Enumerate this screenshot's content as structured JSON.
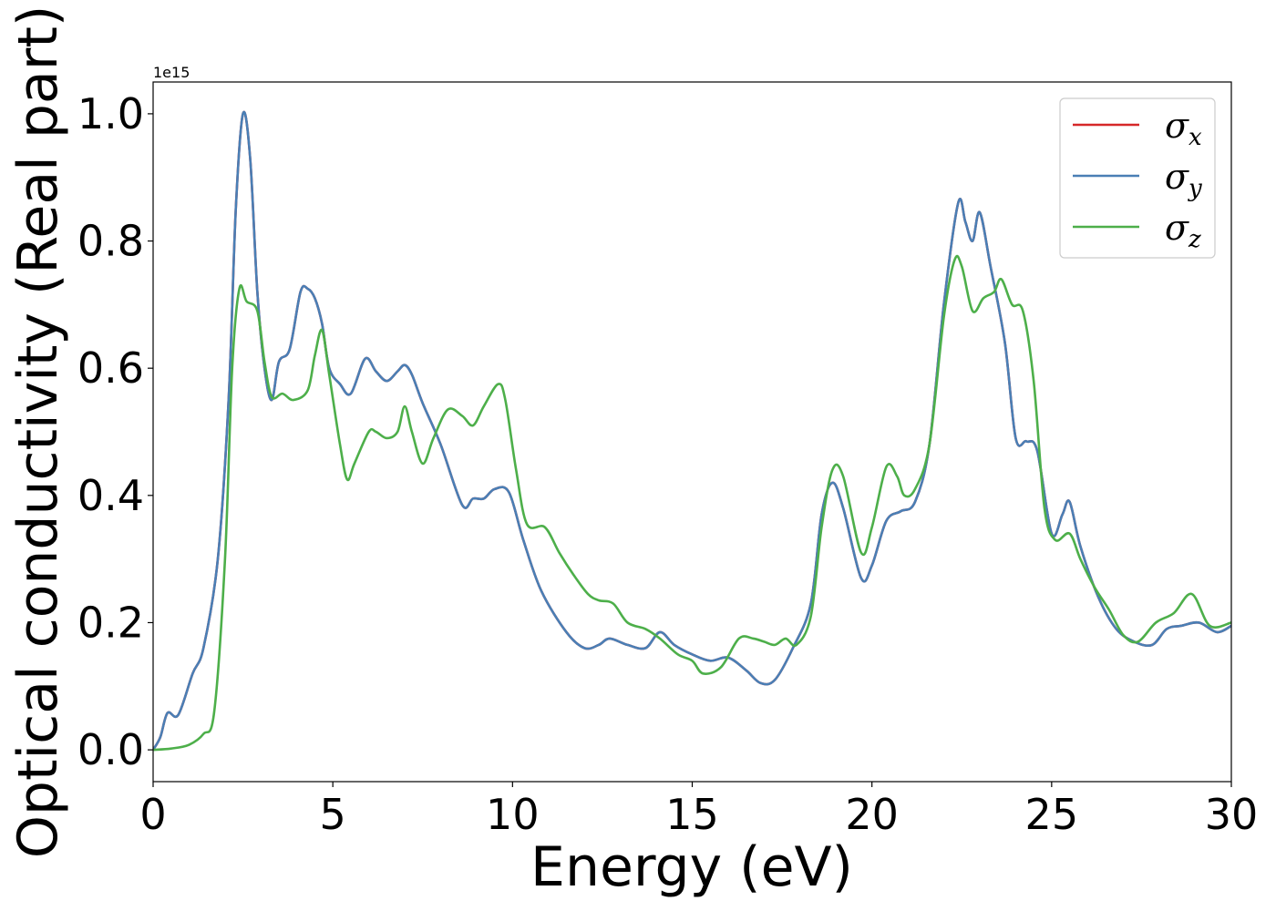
{
  "chart_data": {
    "type": "line",
    "xlabel": "Energy (eV)",
    "ylabel": "Optical conductivity (Real part)",
    "y_offset_label": "1e15",
    "xlim": [
      0,
      30
    ],
    "ylim": [
      -0.05,
      1.05
    ],
    "xticks": [
      0,
      5,
      10,
      15,
      20,
      25,
      30
    ],
    "xtick_labels": [
      "0",
      "5",
      "10",
      "15",
      "20",
      "25",
      "30"
    ],
    "yticks": [
      0.0,
      0.2,
      0.4,
      0.6,
      0.8,
      1.0
    ],
    "ytick_labels": [
      "0.0",
      "0.2",
      "0.4",
      "0.6",
      "0.8",
      "1.0"
    ],
    "grid": false,
    "legend_position": "top-right",
    "series": [
      {
        "name": "σx",
        "symbol": "σ",
        "subscript": "x",
        "color": "#d62728",
        "points": [
          [
            0,
            0
          ],
          [
            0.2,
            0.02
          ],
          [
            0.4,
            0.058
          ],
          [
            0.7,
            0.055
          ],
          [
            1.1,
            0.12
          ],
          [
            1.4,
            0.16
          ],
          [
            1.8,
            0.3
          ],
          [
            2.1,
            0.55
          ],
          [
            2.3,
            0.85
          ],
          [
            2.5,
            1.0
          ],
          [
            2.7,
            0.93
          ],
          [
            2.9,
            0.72
          ],
          [
            3.1,
            0.6
          ],
          [
            3.3,
            0.55
          ],
          [
            3.5,
            0.61
          ],
          [
            3.8,
            0.63
          ],
          [
            4.1,
            0.72
          ],
          [
            4.3,
            0.725
          ],
          [
            4.5,
            0.71
          ],
          [
            4.7,
            0.67
          ],
          [
            4.9,
            0.6
          ],
          [
            5.2,
            0.575
          ],
          [
            5.5,
            0.56
          ],
          [
            5.9,
            0.615
          ],
          [
            6.2,
            0.595
          ],
          [
            6.5,
            0.58
          ],
          [
            6.8,
            0.595
          ],
          [
            7.0,
            0.605
          ],
          [
            7.2,
            0.59
          ],
          [
            7.5,
            0.545
          ],
          [
            8.0,
            0.48
          ],
          [
            8.6,
            0.385
          ],
          [
            8.9,
            0.395
          ],
          [
            9.2,
            0.395
          ],
          [
            9.5,
            0.41
          ],
          [
            9.9,
            0.405
          ],
          [
            10.3,
            0.33
          ],
          [
            10.8,
            0.25
          ],
          [
            11.5,
            0.185
          ],
          [
            12.0,
            0.16
          ],
          [
            12.4,
            0.165
          ],
          [
            12.7,
            0.175
          ],
          [
            13.2,
            0.165
          ],
          [
            13.7,
            0.16
          ],
          [
            14.1,
            0.185
          ],
          [
            14.5,
            0.165
          ],
          [
            15.0,
            0.15
          ],
          [
            15.5,
            0.14
          ],
          [
            16.0,
            0.145
          ],
          [
            16.5,
            0.125
          ],
          [
            16.9,
            0.105
          ],
          [
            17.3,
            0.11
          ],
          [
            17.8,
            0.16
          ],
          [
            18.3,
            0.23
          ],
          [
            18.6,
            0.37
          ],
          [
            18.9,
            0.42
          ],
          [
            19.2,
            0.38
          ],
          [
            19.7,
            0.27
          ],
          [
            20.0,
            0.29
          ],
          [
            20.4,
            0.36
          ],
          [
            20.8,
            0.375
          ],
          [
            21.2,
            0.39
          ],
          [
            21.6,
            0.48
          ],
          [
            22.0,
            0.7
          ],
          [
            22.4,
            0.86
          ],
          [
            22.6,
            0.83
          ],
          [
            22.8,
            0.8
          ],
          [
            23.0,
            0.845
          ],
          [
            23.3,
            0.76
          ],
          [
            23.7,
            0.64
          ],
          [
            24.0,
            0.49
          ],
          [
            24.3,
            0.485
          ],
          [
            24.6,
            0.47
          ],
          [
            25.0,
            0.34
          ],
          [
            25.3,
            0.37
          ],
          [
            25.5,
            0.39
          ],
          [
            25.8,
            0.32
          ],
          [
            26.3,
            0.24
          ],
          [
            26.8,
            0.19
          ],
          [
            27.3,
            0.17
          ],
          [
            27.8,
            0.165
          ],
          [
            28.2,
            0.19
          ],
          [
            28.6,
            0.195
          ],
          [
            29.1,
            0.2
          ],
          [
            29.6,
            0.185
          ],
          [
            30.0,
            0.195
          ]
        ]
      },
      {
        "name": "σy",
        "symbol": "σ",
        "subscript": "y",
        "color": "#4a7fb5",
        "points": [
          [
            0,
            0
          ],
          [
            0.2,
            0.02
          ],
          [
            0.4,
            0.058
          ],
          [
            0.7,
            0.055
          ],
          [
            1.1,
            0.12
          ],
          [
            1.4,
            0.16
          ],
          [
            1.8,
            0.3
          ],
          [
            2.1,
            0.55
          ],
          [
            2.3,
            0.85
          ],
          [
            2.5,
            1.0
          ],
          [
            2.7,
            0.93
          ],
          [
            2.9,
            0.72
          ],
          [
            3.1,
            0.6
          ],
          [
            3.3,
            0.55
          ],
          [
            3.5,
            0.61
          ],
          [
            3.8,
            0.63
          ],
          [
            4.1,
            0.72
          ],
          [
            4.3,
            0.725
          ],
          [
            4.5,
            0.71
          ],
          [
            4.7,
            0.67
          ],
          [
            4.9,
            0.6
          ],
          [
            5.2,
            0.575
          ],
          [
            5.5,
            0.56
          ],
          [
            5.9,
            0.615
          ],
          [
            6.2,
            0.595
          ],
          [
            6.5,
            0.58
          ],
          [
            6.8,
            0.595
          ],
          [
            7.0,
            0.605
          ],
          [
            7.2,
            0.59
          ],
          [
            7.5,
            0.545
          ],
          [
            8.0,
            0.48
          ],
          [
            8.6,
            0.385
          ],
          [
            8.9,
            0.395
          ],
          [
            9.2,
            0.395
          ],
          [
            9.5,
            0.41
          ],
          [
            9.9,
            0.405
          ],
          [
            10.3,
            0.33
          ],
          [
            10.8,
            0.25
          ],
          [
            11.5,
            0.185
          ],
          [
            12.0,
            0.16
          ],
          [
            12.4,
            0.165
          ],
          [
            12.7,
            0.175
          ],
          [
            13.2,
            0.165
          ],
          [
            13.7,
            0.16
          ],
          [
            14.1,
            0.185
          ],
          [
            14.5,
            0.165
          ],
          [
            15.0,
            0.15
          ],
          [
            15.5,
            0.14
          ],
          [
            16.0,
            0.145
          ],
          [
            16.5,
            0.125
          ],
          [
            16.9,
            0.105
          ],
          [
            17.3,
            0.11
          ],
          [
            17.8,
            0.16
          ],
          [
            18.3,
            0.23
          ],
          [
            18.6,
            0.37
          ],
          [
            18.9,
            0.42
          ],
          [
            19.2,
            0.38
          ],
          [
            19.7,
            0.27
          ],
          [
            20.0,
            0.29
          ],
          [
            20.4,
            0.36
          ],
          [
            20.8,
            0.375
          ],
          [
            21.2,
            0.39
          ],
          [
            21.6,
            0.48
          ],
          [
            22.0,
            0.7
          ],
          [
            22.4,
            0.86
          ],
          [
            22.6,
            0.83
          ],
          [
            22.8,
            0.8
          ],
          [
            23.0,
            0.845
          ],
          [
            23.3,
            0.76
          ],
          [
            23.7,
            0.64
          ],
          [
            24.0,
            0.49
          ],
          [
            24.3,
            0.485
          ],
          [
            24.6,
            0.47
          ],
          [
            25.0,
            0.34
          ],
          [
            25.3,
            0.37
          ],
          [
            25.5,
            0.39
          ],
          [
            25.8,
            0.32
          ],
          [
            26.3,
            0.24
          ],
          [
            26.8,
            0.19
          ],
          [
            27.3,
            0.17
          ],
          [
            27.8,
            0.165
          ],
          [
            28.2,
            0.19
          ],
          [
            28.6,
            0.195
          ],
          [
            29.1,
            0.2
          ],
          [
            29.6,
            0.185
          ],
          [
            30.0,
            0.195
          ]
        ]
      },
      {
        "name": "σz",
        "symbol": "σ",
        "subscript": "z",
        "color": "#4daf4a",
        "points": [
          [
            0,
            0
          ],
          [
            0.5,
            0.002
          ],
          [
            1.0,
            0.008
          ],
          [
            1.4,
            0.025
          ],
          [
            1.7,
            0.06
          ],
          [
            2.0,
            0.3
          ],
          [
            2.2,
            0.6
          ],
          [
            2.4,
            0.725
          ],
          [
            2.6,
            0.705
          ],
          [
            2.9,
            0.69
          ],
          [
            3.1,
            0.61
          ],
          [
            3.3,
            0.555
          ],
          [
            3.6,
            0.56
          ],
          [
            3.9,
            0.55
          ],
          [
            4.3,
            0.565
          ],
          [
            4.5,
            0.62
          ],
          [
            4.7,
            0.66
          ],
          [
            4.9,
            0.59
          ],
          [
            5.2,
            0.48
          ],
          [
            5.4,
            0.425
          ],
          [
            5.6,
            0.45
          ],
          [
            6.0,
            0.5
          ],
          [
            6.2,
            0.5
          ],
          [
            6.5,
            0.49
          ],
          [
            6.8,
            0.5
          ],
          [
            7.0,
            0.54
          ],
          [
            7.2,
            0.5
          ],
          [
            7.5,
            0.45
          ],
          [
            7.8,
            0.49
          ],
          [
            8.2,
            0.535
          ],
          [
            8.6,
            0.525
          ],
          [
            8.9,
            0.51
          ],
          [
            9.2,
            0.54
          ],
          [
            9.6,
            0.575
          ],
          [
            9.8,
            0.55
          ],
          [
            10.1,
            0.44
          ],
          [
            10.4,
            0.355
          ],
          [
            10.9,
            0.35
          ],
          [
            11.3,
            0.31
          ],
          [
            11.7,
            0.275
          ],
          [
            12.1,
            0.245
          ],
          [
            12.4,
            0.235
          ],
          [
            12.8,
            0.23
          ],
          [
            13.2,
            0.2
          ],
          [
            13.7,
            0.19
          ],
          [
            14.1,
            0.175
          ],
          [
            14.6,
            0.15
          ],
          [
            15.0,
            0.14
          ],
          [
            15.3,
            0.12
          ],
          [
            15.8,
            0.13
          ],
          [
            16.3,
            0.175
          ],
          [
            16.7,
            0.175
          ],
          [
            17.0,
            0.17
          ],
          [
            17.3,
            0.165
          ],
          [
            17.6,
            0.175
          ],
          [
            17.9,
            0.165
          ],
          [
            18.3,
            0.21
          ],
          [
            18.6,
            0.35
          ],
          [
            18.9,
            0.44
          ],
          [
            19.2,
            0.43
          ],
          [
            19.7,
            0.31
          ],
          [
            20.0,
            0.35
          ],
          [
            20.4,
            0.445
          ],
          [
            20.7,
            0.43
          ],
          [
            20.9,
            0.4
          ],
          [
            21.2,
            0.41
          ],
          [
            21.6,
            0.48
          ],
          [
            22.0,
            0.68
          ],
          [
            22.3,
            0.77
          ],
          [
            22.5,
            0.76
          ],
          [
            22.8,
            0.69
          ],
          [
            23.1,
            0.71
          ],
          [
            23.4,
            0.72
          ],
          [
            23.6,
            0.74
          ],
          [
            23.9,
            0.7
          ],
          [
            24.2,
            0.69
          ],
          [
            24.5,
            0.58
          ],
          [
            24.8,
            0.38
          ],
          [
            25.1,
            0.33
          ],
          [
            25.5,
            0.34
          ],
          [
            25.8,
            0.3
          ],
          [
            26.2,
            0.255
          ],
          [
            26.6,
            0.22
          ],
          [
            27.0,
            0.18
          ],
          [
            27.4,
            0.17
          ],
          [
            27.9,
            0.2
          ],
          [
            28.4,
            0.215
          ],
          [
            28.9,
            0.245
          ],
          [
            29.4,
            0.195
          ],
          [
            30.0,
            0.2
          ]
        ]
      }
    ]
  }
}
